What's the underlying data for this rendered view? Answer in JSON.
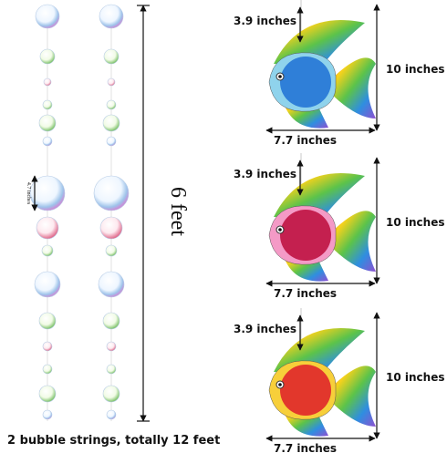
{
  "bubble_strings": {
    "height_label": "6 feet",
    "bubble_label": "4.7 inches",
    "caption": "2 bubble strings, totally 12 feet"
  },
  "fish": [
    {
      "top_label": "3.9 inches",
      "height_label": "10 inches",
      "width_label": "7.7 inches"
    },
    {
      "top_label": "3.9 inches",
      "height_label": "10 inches",
      "width_label": "7.7 inches"
    },
    {
      "top_label": "3.9 inches",
      "height_label": "10 inches",
      "width_label": "7.7 inches"
    }
  ]
}
